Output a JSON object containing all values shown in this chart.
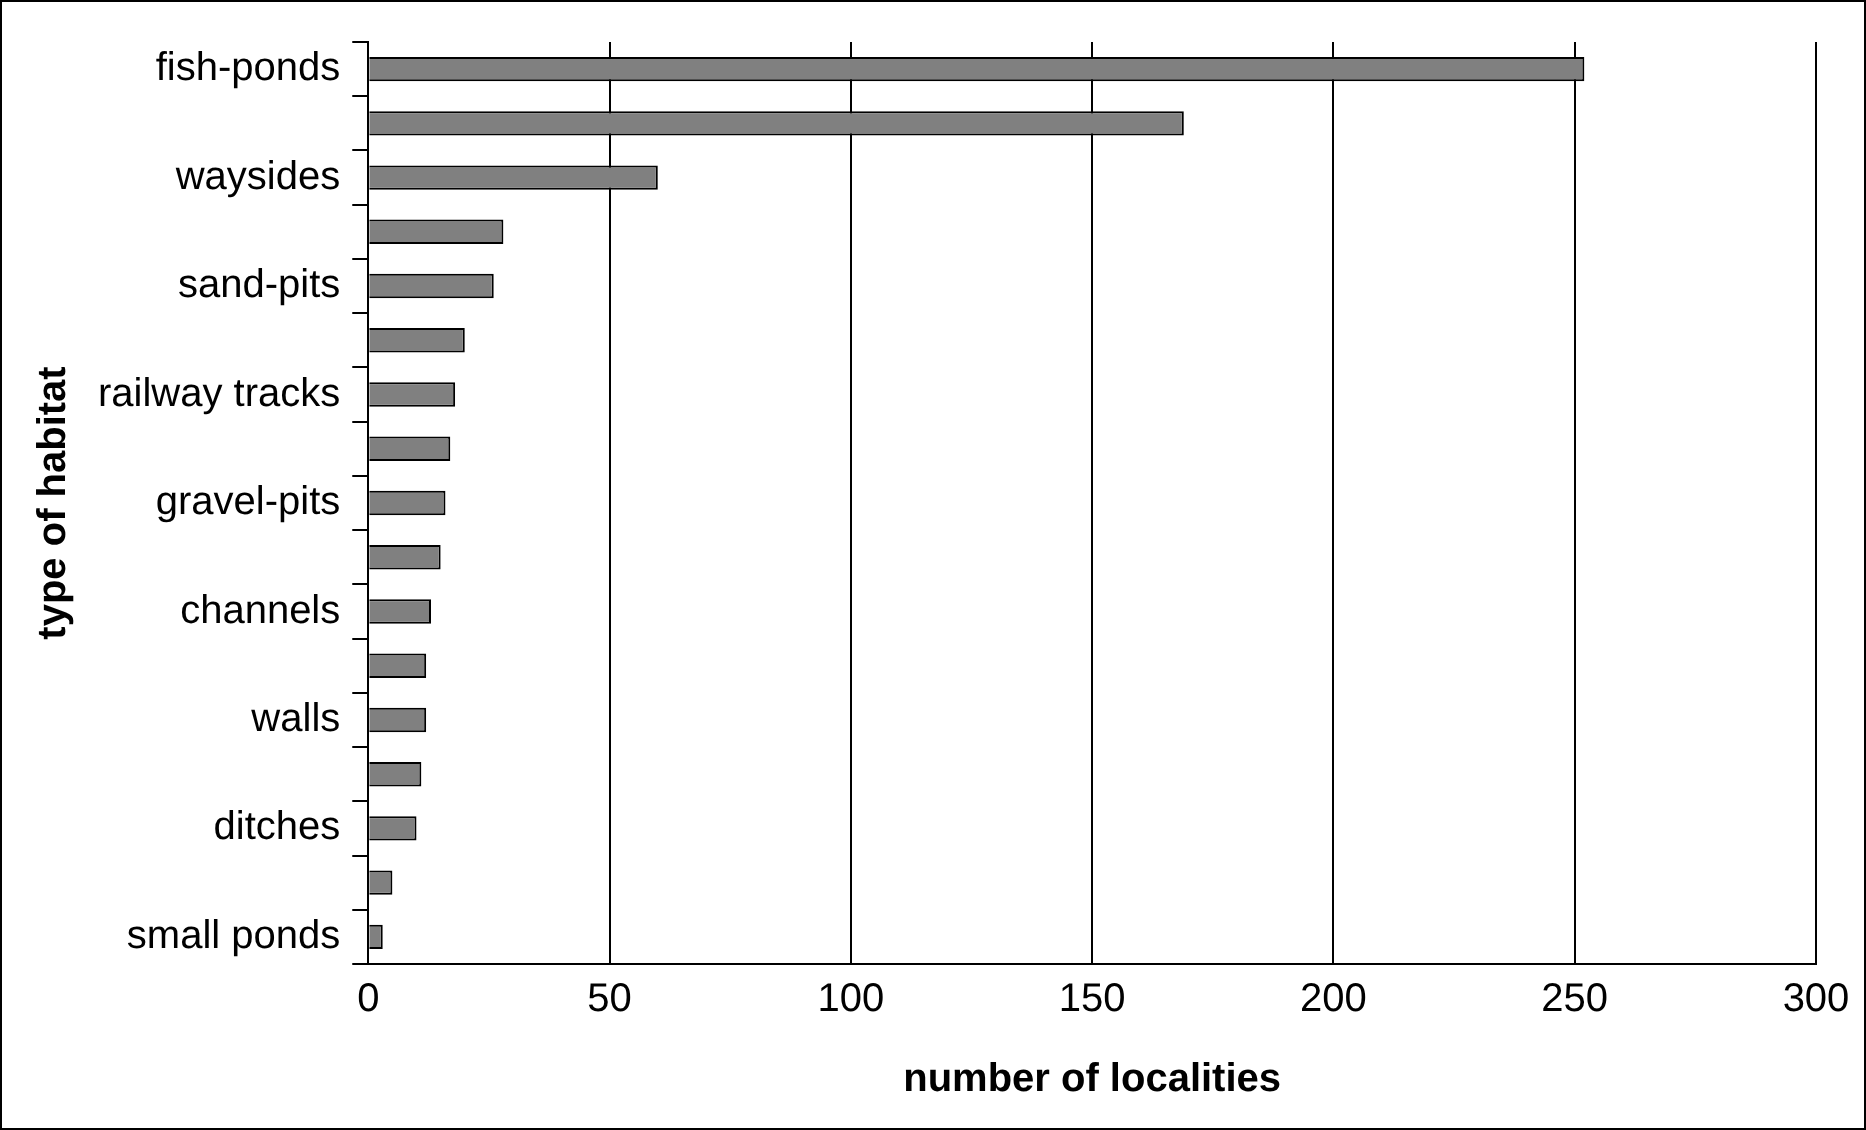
{
  "chart_data": {
    "type": "bar",
    "orientation": "horizontal",
    "xlabel": "number of localities",
    "ylabel": "type of habitat",
    "categories": [
      "fish-ponds",
      null,
      "waysides",
      null,
      "sand-pits",
      null,
      "railway tracks",
      null,
      "gravel-pits",
      null,
      "channels",
      null,
      "walls",
      null,
      "ditches",
      null,
      "small ponds"
    ],
    "values": [
      252,
      169,
      60,
      28,
      26,
      20,
      18,
      17,
      16,
      15,
      13,
      12,
      12,
      11,
      10,
      5,
      3
    ],
    "color": "#808080",
    "xlim": [
      0,
      300
    ],
    "xticks": [
      0,
      50,
      100,
      150,
      200,
      250,
      300
    ],
    "grid": "x",
    "legend": false
  }
}
